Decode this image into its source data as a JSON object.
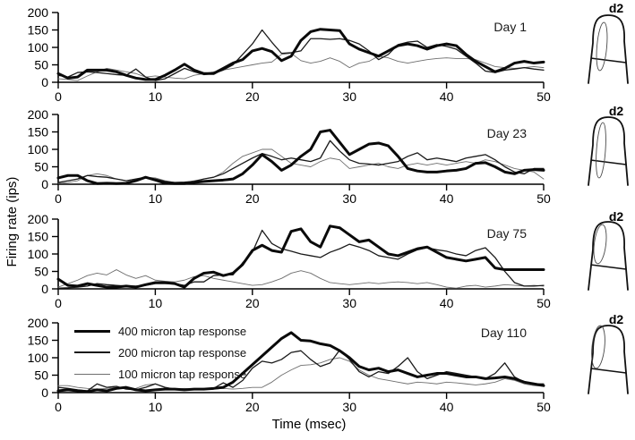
{
  "figure": {
    "background": "#ffffff",
    "axis_color": "#000000"
  },
  "chart_data": {
    "type": "line",
    "xlabel": "Time (msec)",
    "ylabel": "Firing rate (ips)",
    "xlim": [
      0,
      50
    ],
    "ylim": [
      0,
      200
    ],
    "x_ticks": [
      0,
      10,
      20,
      30,
      40,
      50
    ],
    "y_ticks": [
      0,
      50,
      100,
      150,
      200
    ],
    "x_start": 0,
    "x_step": 1,
    "grid": false,
    "legend_position": "top-left of Day 110 panel",
    "legend": [
      {
        "label": "400 micron tap response",
        "weight": 3,
        "color": "#0a0a0a"
      },
      {
        "label": "200 micron tap response",
        "weight": 1.3,
        "color": "#1a1a1a"
      },
      {
        "label": "100 micron tap response",
        "weight": 0.9,
        "color": "#6e6e6e"
      }
    ],
    "panels": [
      {
        "label": "Day 1",
        "series": [
          {
            "name": "400 micron tap response",
            "values": [
              25,
              12,
              15,
              35,
              35,
              35,
              30,
              20,
              12,
              8,
              8,
              20,
              35,
              52,
              35,
              25,
              25,
              40,
              55,
              65,
              90,
              97,
              88,
              62,
              75,
              120,
              145,
              152,
              150,
              148,
              110,
              95,
              85,
              75,
              90,
              105,
              110,
              105,
              95,
              105,
              110,
              105,
              80,
              60,
              45,
              30,
              40,
              55,
              60,
              55,
              58
            ]
          },
          {
            "name": "200 micron tap response",
            "values": [
              20,
              15,
              28,
              30,
              28,
              25,
              22,
              20,
              38,
              15,
              5,
              10,
              25,
              40,
              30,
              22,
              25,
              35,
              50,
              80,
              110,
              150,
              115,
              83,
              85,
              90,
              125,
              125,
              123,
              125,
              120,
              110,
              90,
              65,
              80,
              108,
              115,
              118,
              100,
              108,
              103,
              95,
              75,
              55,
              32,
              28,
              35,
              38,
              42,
              38,
              35
            ]
          },
          {
            "name": "100 micron tap response",
            "values": [
              10,
              8,
              5,
              18,
              30,
              40,
              35,
              30,
              25,
              15,
              18,
              15,
              12,
              10,
              20,
              25,
              30,
              35,
              40,
              45,
              50,
              55,
              58,
              80,
              83,
              62,
              55,
              60,
              70,
              60,
              42,
              55,
              60,
              75,
              70,
              60,
              55,
              60,
              65,
              68,
              70,
              68,
              68,
              65,
              55,
              45,
              42,
              40,
              42,
              45,
              42
            ]
          }
        ]
      },
      {
        "label": "Day 23",
        "series": [
          {
            "name": "400 micron tap response",
            "values": [
              18,
              25,
              25,
              10,
              2,
              3,
              2,
              3,
              10,
              20,
              12,
              3,
              2,
              2,
              5,
              8,
              10,
              12,
              15,
              30,
              55,
              85,
              65,
              40,
              55,
              80,
              100,
              150,
              155,
              120,
              85,
              100,
              115,
              118,
              110,
              80,
              45,
              38,
              35,
              35,
              38,
              40,
              45,
              60,
              62,
              50,
              35,
              30,
              40,
              42,
              40
            ]
          },
          {
            "name": "200 micron tap response",
            "values": [
              5,
              10,
              15,
              25,
              22,
              20,
              15,
              10,
              15,
              20,
              15,
              8,
              5,
              6,
              8,
              15,
              20,
              30,
              45,
              60,
              75,
              88,
              80,
              70,
              75,
              70,
              65,
              75,
              125,
              95,
              70,
              60,
              58,
              55,
              60,
              65,
              80,
              90,
              70,
              75,
              70,
              65,
              75,
              80,
              85,
              70,
              50,
              35,
              30,
              45,
              45
            ]
          },
          {
            "name": "100 micron tap response",
            "values": [
              2,
              5,
              10,
              25,
              30,
              25,
              15,
              10,
              15,
              20,
              18,
              10,
              5,
              5,
              10,
              15,
              20,
              35,
              60,
              80,
              90,
              100,
              100,
              80,
              60,
              55,
              50,
              65,
              75,
              70,
              45,
              50,
              55,
              60,
              50,
              45,
              55,
              60,
              55,
              60,
              55,
              60,
              65,
              60,
              70,
              65,
              55,
              45,
              40,
              35,
              15
            ]
          }
        ]
      },
      {
        "label": "Day 75",
        "series": [
          {
            "name": "400 micron tap response",
            "values": [
              28,
              10,
              8,
              15,
              10,
              5,
              5,
              8,
              5,
              12,
              18,
              18,
              15,
              5,
              30,
              45,
              48,
              38,
              45,
              70,
              110,
              125,
              110,
              105,
              165,
              172,
              135,
              120,
              180,
              175,
              155,
              135,
              140,
              120,
              100,
              95,
              105,
              115,
              120,
              105,
              90,
              85,
              80,
              85,
              90,
              60,
              55,
              55,
              55,
              55,
              55
            ]
          },
          {
            "name": "200 micron tap response",
            "values": [
              2,
              3,
              5,
              8,
              15,
              12,
              10,
              8,
              8,
              10,
              15,
              15,
              15,
              10,
              20,
              20,
              38,
              40,
              40,
              75,
              105,
              168,
              130,
              115,
              108,
              100,
              95,
              90,
              105,
              115,
              128,
              120,
              110,
              95,
              90,
              85,
              100,
              112,
              118,
              112,
              108,
              100,
              95,
              110,
              118,
              90,
              50,
              18,
              8,
              8,
              10
            ]
          },
          {
            "name": "100 micron tap response",
            "values": [
              5,
              15,
              25,
              38,
              45,
              40,
              55,
              40,
              30,
              38,
              25,
              22,
              20,
              25,
              35,
              38,
              30,
              25,
              20,
              15,
              10,
              12,
              20,
              30,
              45,
              52,
              45,
              30,
              18,
              15,
              12,
              15,
              18,
              15,
              18,
              20,
              18,
              15,
              18,
              12,
              5,
              2,
              8,
              10,
              5,
              8,
              12,
              10,
              8,
              10,
              8
            ]
          }
        ]
      },
      {
        "label": "Day 110",
        "series": [
          {
            "name": "400 micron tap response",
            "values": [
              5,
              8,
              5,
              3,
              8,
              5,
              12,
              15,
              8,
              5,
              8,
              10,
              10,
              8,
              10,
              10,
              12,
              15,
              30,
              55,
              80,
              105,
              130,
              155,
              172,
              150,
              148,
              140,
              135,
              120,
              100,
              75,
              65,
              70,
              60,
              65,
              55,
              45,
              50,
              55,
              55,
              50,
              45,
              45,
              40,
              42,
              45,
              40,
              30,
              25,
              20
            ]
          },
          {
            "name": "200 micron tap response",
            "values": [
              15,
              12,
              8,
              5,
              25,
              15,
              18,
              10,
              8,
              15,
              25,
              15,
              10,
              10,
              8,
              10,
              12,
              28,
              15,
              35,
              70,
              90,
              85,
              95,
              115,
              120,
              95,
              75,
              85,
              122,
              95,
              60,
              45,
              60,
              55,
              75,
              100,
              60,
              40,
              50,
              60,
              55,
              50,
              45,
              40,
              55,
              85,
              45,
              30,
              25,
              25
            ]
          },
          {
            "name": "100 micron tap response",
            "values": [
              20,
              20,
              15,
              12,
              10,
              12,
              15,
              10,
              12,
              22,
              25,
              15,
              10,
              12,
              10,
              12,
              10,
              12,
              10,
              12,
              15,
              15,
              30,
              50,
              65,
              78,
              80,
              85,
              95,
              100,
              90,
              65,
              50,
              40,
              35,
              30,
              25,
              30,
              28,
              25,
              30,
              28,
              25,
              22,
              25,
              30,
              40,
              35,
              25,
              20,
              18
            ]
          }
        ]
      }
    ]
  },
  "fingers": [
    {
      "label": "d2"
    },
    {
      "label": "d2"
    },
    {
      "label": "d2"
    },
    {
      "label": "d2"
    }
  ]
}
